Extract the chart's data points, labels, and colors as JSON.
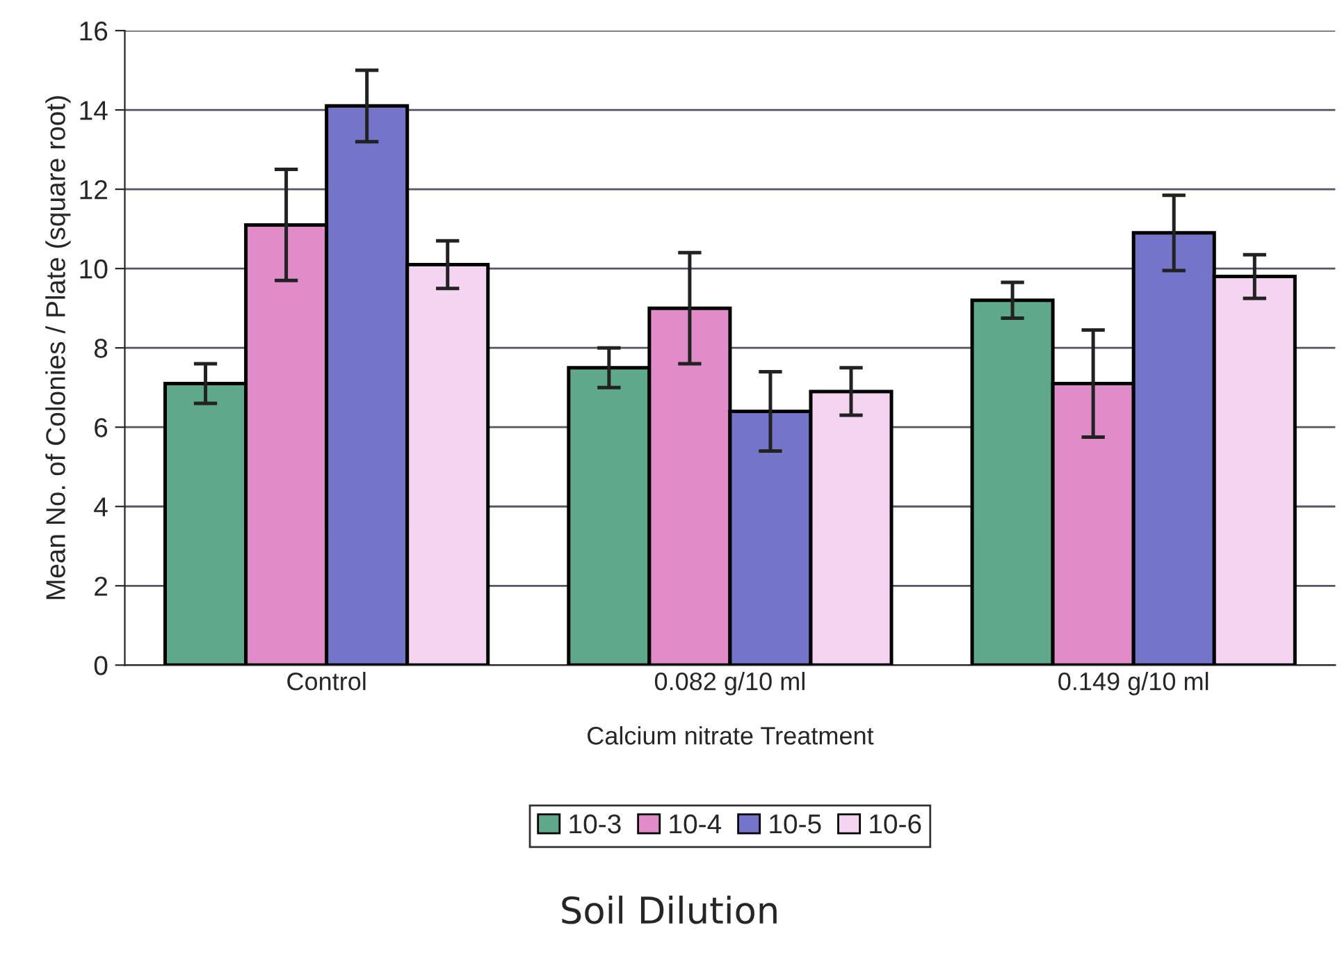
{
  "chart_data": {
    "type": "bar",
    "xlabel": "Calcium nitrate Treatment",
    "ylabel": "Mean No. of Colonies / Plate (square root)",
    "legend_title": "Soil Dilution",
    "categories": [
      "Control",
      "0.082 g/10 ml",
      "0.149 g/10 ml"
    ],
    "series": [
      {
        "name": "10-3",
        "color": "#5fa88a",
        "values": [
          7.1,
          7.5,
          9.2
        ],
        "errors": [
          0.5,
          0.5,
          0.45
        ]
      },
      {
        "name": "10-4",
        "color": "#e08cc8",
        "values": [
          11.1,
          9.0,
          7.1
        ],
        "errors": [
          1.4,
          1.4,
          1.35
        ]
      },
      {
        "name": "10-5",
        "color": "#7474c8",
        "values": [
          14.1,
          6.4,
          10.9
        ],
        "errors": [
          0.9,
          1.0,
          0.95
        ]
      },
      {
        "name": "10-6",
        "color": "#f4d4f0",
        "values": [
          10.1,
          6.9,
          9.8
        ],
        "errors": [
          0.6,
          0.6,
          0.55
        ]
      }
    ],
    "ylim": [
      0,
      16
    ],
    "yticks": [
      0,
      2,
      4,
      6,
      8,
      10,
      12,
      14,
      16
    ],
    "grid": "y",
    "legend": "bottom"
  }
}
